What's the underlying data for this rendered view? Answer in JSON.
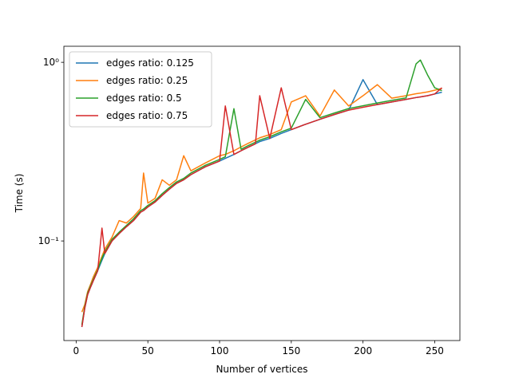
{
  "chart_data": {
    "type": "line",
    "xlabel": "Number of vertices",
    "ylabel": "Time (s)",
    "x": [
      4,
      6,
      8,
      10,
      12,
      15,
      18,
      20,
      25,
      30,
      35,
      40,
      45,
      47,
      50,
      55,
      60,
      65,
      70,
      75,
      80,
      90,
      100,
      104,
      110,
      115,
      120,
      125,
      128,
      135,
      143,
      150,
      160,
      170,
      180,
      190,
      200,
      210,
      220,
      230,
      237,
      240,
      245,
      250,
      255
    ],
    "series": [
      {
        "name": "edges ratio: 0.125",
        "color": "#1f77b4",
        "values": [
          0.033,
          0.042,
          0.05,
          0.055,
          0.06,
          0.068,
          0.078,
          0.085,
          0.1,
          0.11,
          0.12,
          0.13,
          0.145,
          0.148,
          0.155,
          0.165,
          0.18,
          0.195,
          0.21,
          0.22,
          0.235,
          0.26,
          0.28,
          0.29,
          0.305,
          0.32,
          0.335,
          0.35,
          0.36,
          0.375,
          0.4,
          0.42,
          0.45,
          0.48,
          0.51,
          0.54,
          0.8,
          0.58,
          0.6,
          0.62,
          0.635,
          0.64,
          0.65,
          0.665,
          0.68
        ]
      },
      {
        "name": "edges ratio: 0.25",
        "color": "#ff7f0e",
        "values": [
          0.04,
          0.044,
          0.052,
          0.057,
          0.063,
          0.071,
          0.082,
          0.09,
          0.105,
          0.13,
          0.126,
          0.137,
          0.152,
          0.24,
          0.163,
          0.173,
          0.22,
          0.205,
          0.22,
          0.3,
          0.247,
          0.273,
          0.3,
          0.305,
          0.32,
          0.336,
          0.352,
          0.368,
          0.378,
          0.394,
          0.42,
          0.6,
          0.65,
          0.5,
          0.7,
          0.57,
          0.65,
          0.75,
          0.63,
          0.65,
          0.667,
          0.672,
          0.683,
          0.698,
          0.714
        ]
      },
      {
        "name": "edges ratio: 0.5",
        "color": "#2ca02c",
        "values": [
          0.034,
          0.043,
          0.051,
          0.056,
          0.061,
          0.069,
          0.08,
          0.087,
          0.102,
          0.112,
          0.122,
          0.133,
          0.148,
          0.151,
          0.158,
          0.168,
          0.184,
          0.199,
          0.214,
          0.224,
          0.24,
          0.265,
          0.286,
          0.296,
          0.55,
          0.326,
          0.342,
          0.357,
          0.367,
          0.383,
          0.408,
          0.428,
          0.62,
          0.49,
          0.52,
          0.551,
          0.571,
          0.592,
          0.612,
          0.632,
          0.98,
          1.03,
          0.85,
          0.72,
          0.694
        ]
      },
      {
        "name": "edges ratio: 0.75",
        "color": "#d62728",
        "values": [
          0.033,
          0.042,
          0.05,
          0.055,
          0.06,
          0.068,
          0.118,
          0.085,
          0.1,
          0.11,
          0.12,
          0.13,
          0.145,
          0.148,
          0.155,
          0.165,
          0.18,
          0.195,
          0.21,
          0.22,
          0.235,
          0.26,
          0.28,
          0.57,
          0.305,
          0.32,
          0.335,
          0.35,
          0.65,
          0.375,
          0.72,
          0.42,
          0.45,
          0.48,
          0.51,
          0.54,
          0.56,
          0.58,
          0.6,
          0.62,
          0.635,
          0.64,
          0.65,
          0.665,
          0.72
        ]
      }
    ],
    "xlim": [
      -8.55,
      267.55
    ],
    "xticks": [
      0,
      50,
      100,
      150,
      200,
      250
    ],
    "ylim": [
      0.0277,
      1.23
    ],
    "yticks": [
      {
        "value": 0.1,
        "label": "10⁻¹"
      },
      {
        "value": 1,
        "label": "10⁰"
      }
    ],
    "log_y": true,
    "legend": "upper left"
  }
}
